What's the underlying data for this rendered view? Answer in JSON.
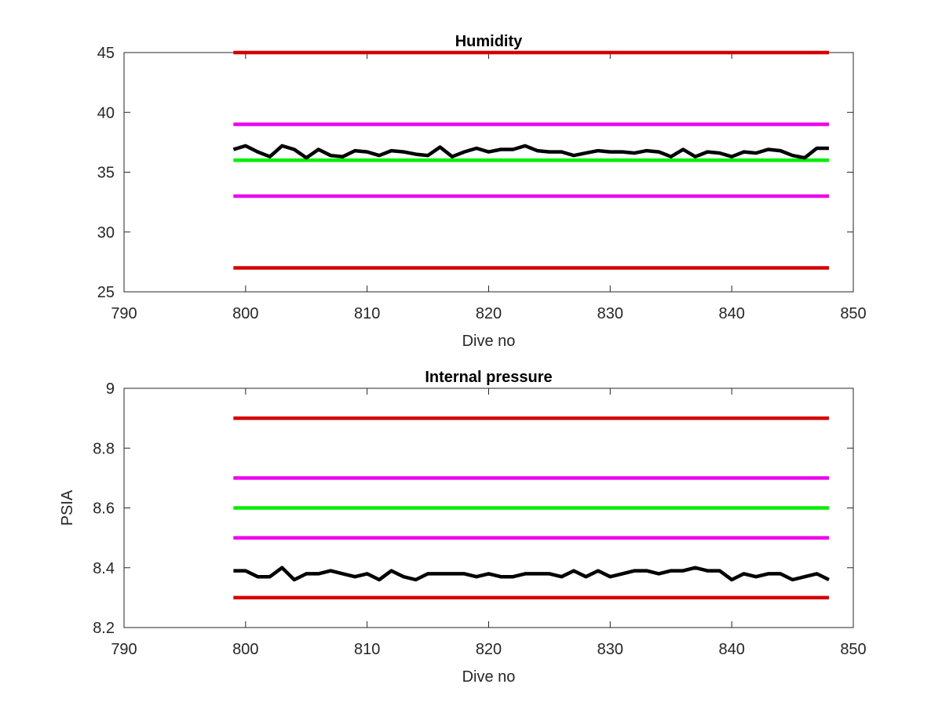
{
  "chart_data": [
    {
      "type": "line",
      "title": "Humidity",
      "xlabel": "Dive no",
      "ylabel": "",
      "xlim": [
        790,
        850
      ],
      "ylim": [
        25,
        45
      ],
      "xticks": [
        790,
        800,
        810,
        820,
        830,
        840,
        850
      ],
      "yticks": [
        25,
        30,
        35,
        40,
        45
      ],
      "grid": false,
      "reference_lines": [
        {
          "y": 45,
          "x": [
            799,
            848
          ],
          "color": "#d40000"
        },
        {
          "y": 39,
          "x": [
            799,
            848
          ],
          "color": "#ee00ee"
        },
        {
          "y": 36,
          "x": [
            799,
            848
          ],
          "color": "#00ee00"
        },
        {
          "y": 33,
          "x": [
            799,
            848
          ],
          "color": "#ee00ee"
        },
        {
          "y": 27,
          "x": [
            799,
            848
          ],
          "color": "#d40000"
        }
      ],
      "series": [
        {
          "color": "#000000",
          "x": [
            799,
            800,
            801,
            802,
            803,
            804,
            805,
            806,
            807,
            808,
            809,
            810,
            811,
            812,
            813,
            814,
            815,
            816,
            817,
            818,
            819,
            820,
            821,
            822,
            823,
            824,
            825,
            826,
            827,
            828,
            829,
            830,
            831,
            832,
            833,
            834,
            835,
            836,
            837,
            838,
            839,
            840,
            841,
            842,
            843,
            844,
            845,
            846,
            847,
            848
          ],
          "y": [
            36.9,
            37.2,
            36.7,
            36.3,
            37.2,
            36.9,
            36.2,
            36.9,
            36.4,
            36.3,
            36.8,
            36.7,
            36.4,
            36.8,
            36.7,
            36.5,
            36.4,
            37.1,
            36.3,
            36.7,
            37.0,
            36.7,
            36.9,
            36.9,
            37.2,
            36.8,
            36.7,
            36.7,
            36.4,
            36.6,
            36.8,
            36.7,
            36.7,
            36.6,
            36.8,
            36.7,
            36.3,
            36.9,
            36.3,
            36.7,
            36.6,
            36.3,
            36.7,
            36.6,
            36.9,
            36.8,
            36.4,
            36.2,
            37.0,
            37.0
          ]
        }
      ]
    },
    {
      "type": "line",
      "title": "Internal pressure",
      "xlabel": "Dive no",
      "ylabel": "PSIA",
      "xlim": [
        790,
        850
      ],
      "ylim": [
        8.2,
        9
      ],
      "xticks": [
        790,
        800,
        810,
        820,
        830,
        840,
        850
      ],
      "yticks": [
        8.2,
        8.4,
        8.6,
        8.8,
        9
      ],
      "grid": false,
      "reference_lines": [
        {
          "y": 8.9,
          "x": [
            799,
            848
          ],
          "color": "#d40000"
        },
        {
          "y": 8.7,
          "x": [
            799,
            848
          ],
          "color": "#ee00ee"
        },
        {
          "y": 8.6,
          "x": [
            799,
            848
          ],
          "color": "#00ee00"
        },
        {
          "y": 8.5,
          "x": [
            799,
            848
          ],
          "color": "#ee00ee"
        },
        {
          "y": 8.3,
          "x": [
            799,
            848
          ],
          "color": "#d40000"
        }
      ],
      "series": [
        {
          "color": "#000000",
          "x": [
            799,
            800,
            801,
            802,
            803,
            804,
            805,
            806,
            807,
            808,
            809,
            810,
            811,
            812,
            813,
            814,
            815,
            816,
            817,
            818,
            819,
            820,
            821,
            822,
            823,
            824,
            825,
            826,
            827,
            828,
            829,
            830,
            831,
            832,
            833,
            834,
            835,
            836,
            837,
            838,
            839,
            840,
            841,
            842,
            843,
            844,
            845,
            846,
            847,
            848
          ],
          "y": [
            8.39,
            8.39,
            8.37,
            8.37,
            8.4,
            8.36,
            8.38,
            8.38,
            8.39,
            8.38,
            8.37,
            8.38,
            8.36,
            8.39,
            8.37,
            8.36,
            8.38,
            8.38,
            8.38,
            8.38,
            8.37,
            8.38,
            8.37,
            8.37,
            8.38,
            8.38,
            8.38,
            8.37,
            8.39,
            8.37,
            8.39,
            8.37,
            8.38,
            8.39,
            8.39,
            8.38,
            8.39,
            8.39,
            8.4,
            8.39,
            8.39,
            8.36,
            8.38,
            8.37,
            8.38,
            8.38,
            8.36,
            8.37,
            8.38,
            8.36
          ]
        }
      ]
    }
  ]
}
